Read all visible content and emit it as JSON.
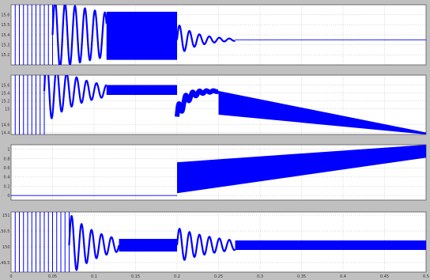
{
  "chart_data": [
    {
      "type": "line",
      "panel": 1,
      "title": "",
      "xlabel": "",
      "ylabel": "",
      "xlim": [
        0,
        0.5
      ],
      "ylim": [
        15.1,
        15.7
      ],
      "yticks": [
        "15.2",
        "15.3",
        "15.4",
        "15.5",
        "15.6"
      ],
      "xticks": [],
      "grid": true,
      "color": "#0000ff",
      "series": [
        {
          "segments": [
            {
              "kind": "impulse_lines",
              "x": [
                0.005,
                0.01,
                0.015,
                0.02,
                0.025,
                0.03,
                0.035,
                0.04,
                0.045,
                0.05
              ],
              "y_range": [
                15.1,
                15.7
              ]
            },
            {
              "kind": "damped_oscillation",
              "x_start": 0.05,
              "x_end": 0.115,
              "center": 15.4,
              "amplitude_start": 0.35,
              "amplitude_end": 0.22
            },
            {
              "kind": "band",
              "x_start": 0.115,
              "x_end": 0.2,
              "y_min": 15.15,
              "y_max": 15.63
            },
            {
              "kind": "damped_oscillation",
              "x_start": 0.2,
              "x_end": 0.27,
              "center": 15.35,
              "amplitude_start": 0.16,
              "amplitude_end": 0.01
            },
            {
              "kind": "steady",
              "x_start": 0.27,
              "x_end": 0.5,
              "y": 15.35
            }
          ]
        }
      ]
    },
    {
      "type": "line",
      "panel": 2,
      "title": "",
      "xlabel": "",
      "ylabel": "",
      "xlim": [
        0,
        0.5
      ],
      "ylim": [
        14.35,
        15.85
      ],
      "yticks": [
        "14.4",
        "14.6",
        "15",
        "15.2",
        "15.4",
        "15.6"
      ],
      "xticks": [],
      "grid": true,
      "color": "#0000ff",
      "series": [
        {
          "segments": [
            {
              "kind": "impulse_lines",
              "x": [
                0.005,
                0.01,
                0.015,
                0.02,
                0.025,
                0.03,
                0.035,
                0.04
              ],
              "y_range": [
                14.35,
                15.85
              ]
            },
            {
              "kind": "damped_oscillation",
              "x_start": 0.04,
              "x_end": 0.115,
              "center": 15.45,
              "amplitude_start": 0.85,
              "amplitude_end": 0.15
            },
            {
              "kind": "band",
              "x_start": 0.115,
              "x_end": 0.2,
              "y_min": 15.35,
              "y_max": 15.6
            },
            {
              "kind": "dip_recovery",
              "x_start": 0.2,
              "x_end": 0.25,
              "y_low": 14.8,
              "y_high": 15.45
            },
            {
              "kind": "wedge",
              "x_start": 0.25,
              "x_end": 0.5,
              "top_start": 15.45,
              "top_end": 14.4,
              "bottom_start": 14.85,
              "bottom_end": 14.35
            }
          ]
        }
      ]
    },
    {
      "type": "line",
      "panel": 3,
      "title": "",
      "xlabel": "",
      "ylabel": "",
      "xlim": [
        0,
        0.5
      ],
      "ylim": [
        -0.1,
        1.1
      ],
      "yticks": [
        "0",
        "0.2",
        "0.4",
        "0.6",
        "0.8",
        "1"
      ],
      "xticks": [],
      "grid": true,
      "color": "#0000ff",
      "series": [
        {
          "segments": [
            {
              "kind": "steady",
              "x_start": 0.0,
              "x_end": 0.2,
              "y": 0.0
            },
            {
              "kind": "wedge",
              "x_start": 0.2,
              "x_end": 0.5,
              "top_start": 0.72,
              "top_end": 1.1,
              "bottom_start": 0.05,
              "bottom_end": 0.82
            }
          ]
        }
      ]
    },
    {
      "type": "line",
      "panel": 4,
      "title": "",
      "xlabel": "",
      "ylabel": "",
      "xlim": [
        0,
        0.5
      ],
      "ylim": [
        149.2,
        151.1
      ],
      "yticks": [
        "149.5",
        "150",
        "150.5",
        "151"
      ],
      "xticks": [
        "0",
        "0.05",
        "0.1",
        "0.15",
        "0.2",
        "0.25",
        "0.3",
        "0.35",
        "0.4",
        "0.45",
        "0.5"
      ],
      "grid": true,
      "color": "#0000ff",
      "series": [
        {
          "segments": [
            {
              "kind": "impulse_lines",
              "x": [
                0.005,
                0.01,
                0.015,
                0.02,
                0.025,
                0.03,
                0.035,
                0.04,
                0.045,
                0.05,
                0.055,
                0.06,
                0.065,
                0.07
              ],
              "y_range": [
                149.2,
                151.1
              ]
            },
            {
              "kind": "damped_oscillation",
              "x_start": 0.07,
              "x_end": 0.13,
              "center": 150.05,
              "amplitude_start": 1.0,
              "amplitude_end": 0.2
            },
            {
              "kind": "band",
              "x_start": 0.13,
              "x_end": 0.2,
              "y_min": 149.85,
              "y_max": 150.25
            },
            {
              "kind": "damped_oscillation",
              "x_start": 0.2,
              "x_end": 0.27,
              "center": 150.05,
              "amplitude_start": 0.55,
              "amplitude_end": 0.15
            },
            {
              "kind": "band",
              "x_start": 0.27,
              "x_end": 0.5,
              "y_min": 149.9,
              "y_max": 150.2
            }
          ]
        }
      ]
    }
  ]
}
